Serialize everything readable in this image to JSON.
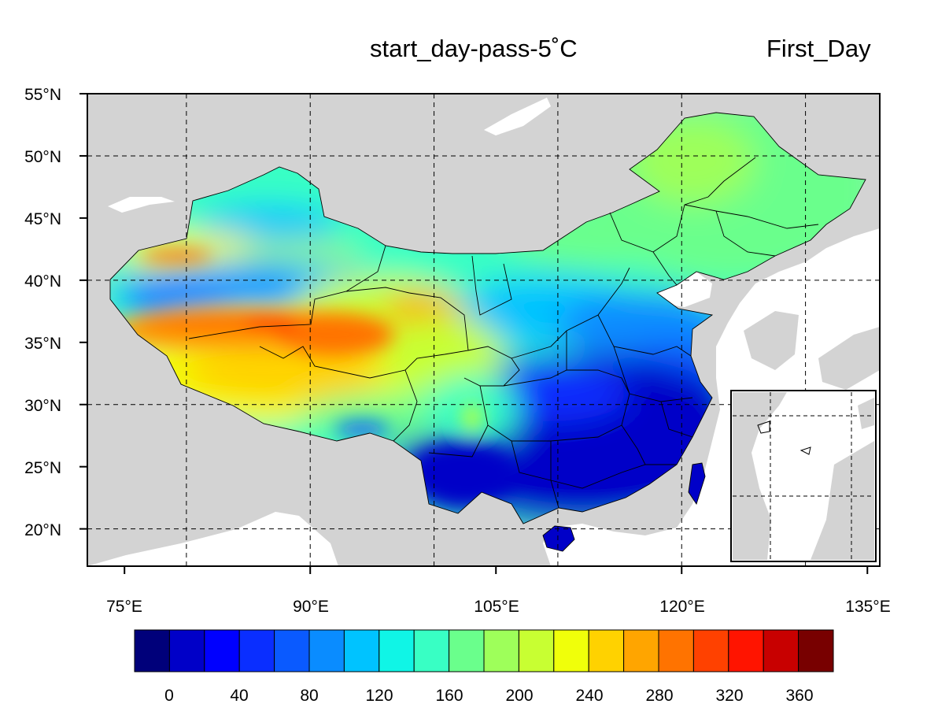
{
  "header": {
    "center_title": "start_day-pass-5˚C",
    "right_title": "First_Day"
  },
  "map": {
    "lon_range": [
      72,
      136
    ],
    "lat_range": [
      17,
      55
    ],
    "lon_ticks": [
      "75°E",
      "90°E",
      "105°E",
      "120°E",
      "135°E"
    ],
    "lat_ticks": [
      "55°N",
      "50°N",
      "45°N",
      "40°N",
      "35°N",
      "30°N",
      "25°N",
      "20°N"
    ],
    "grid_lons": [
      80,
      90,
      100,
      110,
      120,
      130
    ],
    "grid_lats": [
      20,
      30,
      40,
      50
    ],
    "land_color": "#d3d3d3",
    "ocean_color": "#ffffff",
    "has_inset_south_china_sea": true
  },
  "colorbar": {
    "labels": [
      "0",
      "40",
      "80",
      "120",
      "160",
      "200",
      "240",
      "280",
      "320",
      "360"
    ],
    "colors": [
      "#00007a",
      "#0000c8",
      "#0000ff",
      "#0a2eff",
      "#0a5aff",
      "#0a8cff",
      "#00c3ff",
      "#10f5e6",
      "#38ffc4",
      "#6aff8c",
      "#9eff5a",
      "#c8ff32",
      "#f0ff0a",
      "#ffd200",
      "#ffa500",
      "#ff7300",
      "#ff4100",
      "#ff1400",
      "#c80000",
      "#780000"
    ]
  }
}
